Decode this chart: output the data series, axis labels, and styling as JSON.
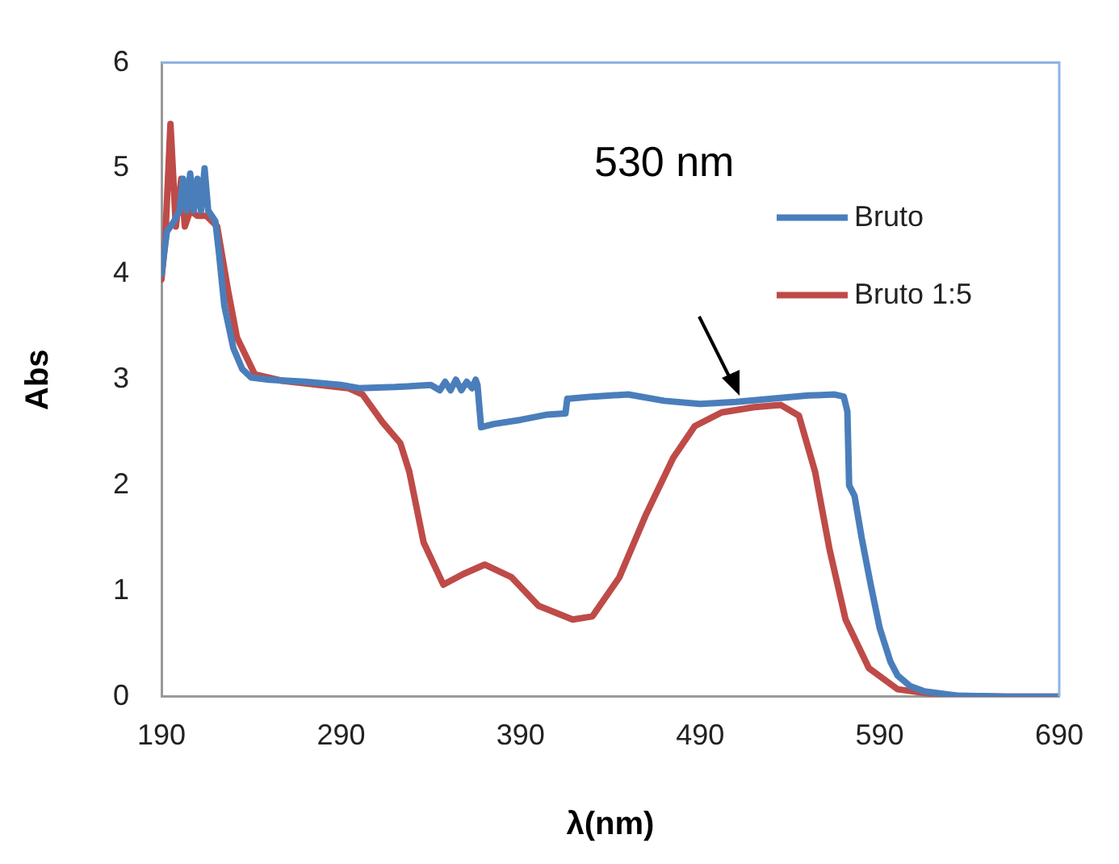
{
  "chart_data": {
    "type": "line",
    "xlabel": "λ(nm)",
    "ylabel": "Abs",
    "xlim": [
      190,
      690
    ],
    "xticks": [
      190,
      290,
      390,
      490,
      590,
      690
    ],
    "ylim": [
      0,
      6
    ],
    "yticks": [
      0,
      1,
      2,
      3,
      4,
      5,
      6
    ],
    "grid": false,
    "legend": "top right",
    "marker": "none",
    "line_style": "solid",
    "annotations": [
      "530 nm"
    ],
    "series": [
      {
        "name": "Bruto",
        "color": "#4a7ebb",
        "x": [
          190,
          193,
          197,
          200,
          202,
          204,
          206,
          208,
          210,
          212,
          214,
          216,
          218,
          220,
          222,
          225,
          230,
          235,
          240,
          250,
          270,
          290,
          300,
          320,
          340,
          345,
          348,
          351,
          354,
          357,
          360,
          363,
          365,
          366,
          368,
          375,
          390,
          405,
          415,
          416,
          417,
          430,
          450,
          470,
          490,
          510,
          530,
          550,
          565,
          570,
          572,
          573,
          576,
          580,
          585,
          590,
          596,
          600,
          607,
          615,
          633,
          660,
          690
        ],
        "values": [
          4.0,
          4.4,
          4.5,
          4.6,
          4.9,
          4.6,
          4.95,
          4.6,
          4.9,
          4.6,
          5.0,
          4.6,
          4.55,
          4.5,
          4.2,
          3.7,
          3.3,
          3.1,
          3.02,
          3.0,
          2.98,
          2.95,
          2.92,
          2.93,
          2.95,
          2.9,
          2.98,
          2.9,
          3.0,
          2.9,
          2.98,
          2.92,
          3.0,
          2.95,
          2.55,
          2.58,
          2.62,
          2.67,
          2.68,
          2.82,
          2.82,
          2.84,
          2.86,
          2.8,
          2.77,
          2.79,
          2.82,
          2.85,
          2.86,
          2.84,
          2.7,
          2.0,
          1.9,
          1.5,
          1.06,
          0.65,
          0.33,
          0.2,
          0.1,
          0.05,
          0.01,
          0.0,
          0.0
        ]
      },
      {
        "name": "Bruto 1:5",
        "color": "#be4b48",
        "x": [
          190,
          192,
          195,
          198,
          201,
          203,
          206,
          210,
          215,
          221,
          227,
          232,
          242,
          257,
          294,
          302,
          313,
          323,
          328,
          336,
          347,
          358,
          370,
          385,
          400,
          419,
          430,
          445,
          460,
          475,
          487,
          502,
          520,
          535,
          545,
          554,
          562,
          571,
          584,
          600,
          626,
          660,
          690
        ],
        "values": [
          3.95,
          4.3,
          5.42,
          4.45,
          4.9,
          4.45,
          4.6,
          4.55,
          4.55,
          4.45,
          3.85,
          3.4,
          3.05,
          2.99,
          2.92,
          2.86,
          2.6,
          2.4,
          2.13,
          1.46,
          1.06,
          1.16,
          1.25,
          1.13,
          0.86,
          0.73,
          0.76,
          1.13,
          1.73,
          2.26,
          2.56,
          2.69,
          2.74,
          2.76,
          2.66,
          2.13,
          1.4,
          0.73,
          0.27,
          0.07,
          0.01,
          0.0,
          0.0
        ]
      }
    ]
  }
}
